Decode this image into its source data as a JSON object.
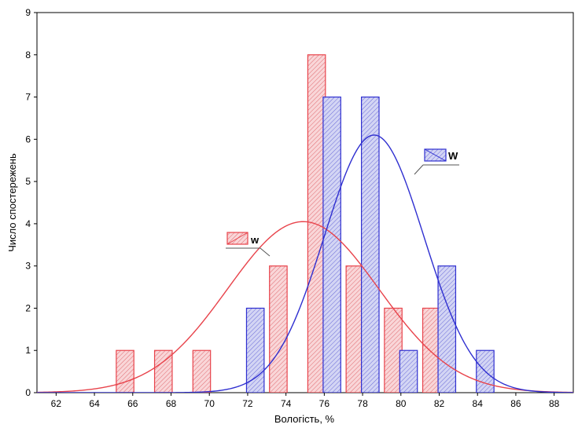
{
  "chart_data": {
    "type": "bar",
    "title": "",
    "xlabel": "Вологість, %",
    "ylabel": "Число спостережень",
    "xlim": [
      61,
      89
    ],
    "ylim": [
      0,
      9
    ],
    "x_ticks": [
      62,
      64,
      66,
      68,
      70,
      72,
      74,
      76,
      78,
      80,
      82,
      84,
      86,
      88
    ],
    "y_ticks": [
      0,
      1,
      2,
      3,
      4,
      5,
      6,
      7,
      8,
      9
    ],
    "bin_width": 2,
    "grid": false,
    "series": [
      {
        "name": "w",
        "color": "#e8434b",
        "fill": "#f7c8cb",
        "bins": [
          {
            "x": 65.6,
            "count": 1
          },
          {
            "x": 67.6,
            "count": 1
          },
          {
            "x": 69.6,
            "count": 1
          },
          {
            "x": 73.6,
            "count": 3
          },
          {
            "x": 75.6,
            "count": 8
          },
          {
            "x": 77.6,
            "count": 3
          },
          {
            "x": 79.6,
            "count": 2
          },
          {
            "x": 81.6,
            "count": 2
          }
        ],
        "normal_fit": {
          "mean": 74.9,
          "sd": 3.95,
          "peak": 4.05
        }
      },
      {
        "name": "W",
        "color": "#2f2fd0",
        "fill": "#c6c8f0",
        "bins": [
          {
            "x": 72.4,
            "count": 2
          },
          {
            "x": 76.4,
            "count": 7
          },
          {
            "x": 78.4,
            "count": 7
          },
          {
            "x": 80.4,
            "count": 1
          },
          {
            "x": 82.4,
            "count": 3
          },
          {
            "x": 84.4,
            "count": 1
          }
        ],
        "normal_fit": {
          "mean": 78.6,
          "sd": 2.6,
          "peak": 6.1
        }
      }
    ],
    "legend": [
      {
        "label": "w",
        "series": "w",
        "placement": "center-left"
      },
      {
        "label": "W",
        "series": "W",
        "placement": "upper-right"
      }
    ]
  }
}
